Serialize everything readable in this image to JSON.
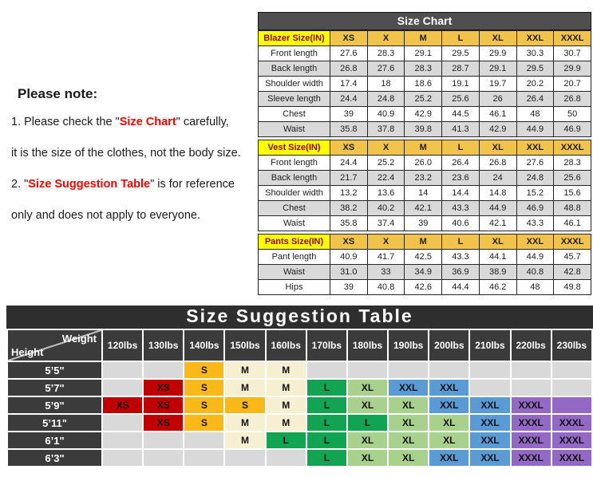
{
  "note": {
    "title": "Please note:",
    "line1_prefix": "1. Please check the \"",
    "line1_highlight": "Size Chart",
    "line1_suffix": "\" carefully,",
    "line2": "it is the size of the clothes, not the body size.",
    "line3_prefix": "2. \"",
    "line3_highlight": "Size Suggestion Table",
    "line3_suffix": "\" is for reference",
    "line4": "only and does not apply to everyone."
  },
  "size_chart": {
    "title": "Size Chart",
    "sections": [
      {
        "label": "Blazer Size(IN)",
        "sizes": [
          "XS",
          "X",
          "M",
          "L",
          "XL",
          "XXL",
          "XXXL"
        ],
        "rows": [
          {
            "label": "Front length",
            "values": [
              "27.6",
              "28.3",
              "29.1",
              "29.5",
              "29.9",
              "30.3",
              "30.7"
            ]
          },
          {
            "label": "Back length",
            "values": [
              "26.8",
              "27.6",
              "28.3",
              "28.7",
              "29.1",
              "29.5",
              "29.9"
            ]
          },
          {
            "label": "Shoulder width",
            "values": [
              "17.4",
              "18",
              "18.6",
              "19.1",
              "19.7",
              "20.2",
              "20.7"
            ]
          },
          {
            "label": "Sleeve length",
            "values": [
              "24.4",
              "24.8",
              "25.2",
              "25.6",
              "26",
              "26.4",
              "26.8"
            ]
          },
          {
            "label": "Chest",
            "values": [
              "39",
              "40.9",
              "42.9",
              "44.5",
              "46.1",
              "48",
              "50"
            ]
          },
          {
            "label": "Waist",
            "values": [
              "35.8",
              "37.8",
              "39.8",
              "41.3",
              "42.9",
              "44.9",
              "46.9"
            ]
          }
        ]
      },
      {
        "label": "Vest Size(IN)",
        "sizes": [
          "XS",
          "X",
          "M",
          "L",
          "XL",
          "XXL",
          "XXXL"
        ],
        "rows": [
          {
            "label": "Front length",
            "values": [
              "24.4",
              "25.2",
              "26.0",
              "26.4",
              "26.8",
              "27.6",
              "28.3"
            ]
          },
          {
            "label": "Back length",
            "values": [
              "21.7",
              "22.4",
              "23.2",
              "23.6",
              "24",
              "24.8",
              "25.6"
            ]
          },
          {
            "label": "Shoulder width",
            "values": [
              "13.2",
              "13.6",
              "14",
              "14.4",
              "14.8",
              "15.2",
              "15.6"
            ]
          },
          {
            "label": "Chest",
            "values": [
              "38.2",
              "40.2",
              "42.1",
              "43.3",
              "44.9",
              "46.9",
              "48.8"
            ]
          },
          {
            "label": "Waist",
            "values": [
              "35.8",
              "37.4",
              "39",
              "40.6",
              "42.1",
              "43.3",
              "46.1"
            ]
          }
        ]
      },
      {
        "label": "Pants Size(IN)",
        "sizes": [
          "XS",
          "X",
          "M",
          "L",
          "XL",
          "XXL",
          "XXXL"
        ],
        "rows": [
          {
            "label": "Pant length",
            "values": [
              "40.9",
              "41.7",
              "42.5",
              "43.3",
              "44.1",
              "44.9",
              "45.7"
            ]
          },
          {
            "label": "Waist",
            "values": [
              "31.0",
              "33",
              "34.9",
              "36.9",
              "38.9",
              "40.8",
              "42.8"
            ]
          },
          {
            "label": "Hips",
            "values": [
              "39",
              "40.8",
              "42.6",
              "44.4",
              "46.2",
              "48",
              "49.8"
            ]
          }
        ]
      }
    ]
  },
  "suggestion_table": {
    "title": "Size Suggestion Table",
    "corner": {
      "weight_label": "Weight",
      "height_label": "Height"
    },
    "weights": [
      "120lbs",
      "130lbs",
      "140lbs",
      "150lbs",
      "160lbs",
      "170lbs",
      "180lbs",
      "190lbs",
      "200lbs",
      "210lbs",
      "220lbs",
      "230lbs"
    ],
    "rows": [
      {
        "height": "5’5\"",
        "cells": [
          {
            "label": "",
            "color": "empty"
          },
          {
            "label": "",
            "color": "empty"
          },
          {
            "label": "S",
            "color": "S"
          },
          {
            "label": "M",
            "color": "M"
          },
          {
            "label": "M",
            "color": "M"
          },
          {
            "label": "",
            "color": "empty"
          },
          {
            "label": "",
            "color": "empty"
          },
          {
            "label": "",
            "color": "empty"
          },
          {
            "label": "",
            "color": "empty"
          },
          {
            "label": "",
            "color": "empty"
          },
          {
            "label": "",
            "color": "empty"
          },
          {
            "label": "",
            "color": "empty"
          }
        ]
      },
      {
        "height": "5’7\"",
        "cells": [
          {
            "label": "",
            "color": "empty"
          },
          {
            "label": "XS",
            "color": "XS"
          },
          {
            "label": "S",
            "color": "S"
          },
          {
            "label": "M",
            "color": "M"
          },
          {
            "label": "M",
            "color": "M"
          },
          {
            "label": "L",
            "color": "L"
          },
          {
            "label": "XL",
            "color": "XL"
          },
          {
            "label": "XXL",
            "color": "XXL"
          },
          {
            "label": "XXL",
            "color": "XXL"
          },
          {
            "label": "",
            "color": "empty"
          },
          {
            "label": "",
            "color": "empty"
          },
          {
            "label": "",
            "color": "empty"
          }
        ]
      },
      {
        "height": "5’9\"",
        "cells": [
          {
            "label": "XS",
            "color": "XS"
          },
          {
            "label": "XS",
            "color": "XS"
          },
          {
            "label": "S",
            "color": "S"
          },
          {
            "label": "S",
            "color": "S"
          },
          {
            "label": "M",
            "color": "M"
          },
          {
            "label": "L",
            "color": "L"
          },
          {
            "label": "XL",
            "color": "XL"
          },
          {
            "label": "XL",
            "color": "XL"
          },
          {
            "label": "XXL",
            "color": "XXL"
          },
          {
            "label": "XXL",
            "color": "XXL"
          },
          {
            "label": "XXXL",
            "color": "XXXL"
          },
          {
            "label": "",
            "color": "XXXL"
          }
        ]
      },
      {
        "height": "5’11\"",
        "cells": [
          {
            "label": "",
            "color": "empty"
          },
          {
            "label": "XS",
            "color": "XS"
          },
          {
            "label": "S",
            "color": "S"
          },
          {
            "label": "M",
            "color": "M"
          },
          {
            "label": "M",
            "color": "M"
          },
          {
            "label": "L",
            "color": "L"
          },
          {
            "label": "L",
            "color": "L"
          },
          {
            "label": "XL",
            "color": "XL"
          },
          {
            "label": "XL",
            "color": "XL"
          },
          {
            "label": "XXL",
            "color": "XXL"
          },
          {
            "label": "XXXL",
            "color": "XXXL"
          },
          {
            "label": "XXXL",
            "color": "XXXL"
          }
        ]
      },
      {
        "height": "6’1\"",
        "cells": [
          {
            "label": "",
            "color": "empty"
          },
          {
            "label": "",
            "color": "empty"
          },
          {
            "label": "",
            "color": "empty"
          },
          {
            "label": "M",
            "color": "M"
          },
          {
            "label": "L",
            "color": "L"
          },
          {
            "label": "L",
            "color": "L"
          },
          {
            "label": "XL",
            "color": "XL"
          },
          {
            "label": "XL",
            "color": "XL"
          },
          {
            "label": "XL",
            "color": "XL"
          },
          {
            "label": "XXL",
            "color": "XXL"
          },
          {
            "label": "XXXL",
            "color": "XXXL"
          },
          {
            "label": "XXXL",
            "color": "XXXL"
          }
        ]
      },
      {
        "height": "6’3\"",
        "cells": [
          {
            "label": "",
            "color": "empty"
          },
          {
            "label": "",
            "color": "empty"
          },
          {
            "label": "",
            "color": "empty"
          },
          {
            "label": "",
            "color": "empty"
          },
          {
            "label": "",
            "color": "empty"
          },
          {
            "label": "L",
            "color": "L"
          },
          {
            "label": "XL",
            "color": "XL"
          },
          {
            "label": "XL",
            "color": "XL"
          },
          {
            "label": "XXL",
            "color": "XXL"
          },
          {
            "label": "XXL",
            "color": "XXL"
          },
          {
            "label": "XXXL",
            "color": "XXXL"
          },
          {
            "label": "XXXL",
            "color": "XXXL"
          }
        ]
      }
    ]
  },
  "colors": {
    "size_colors": {
      "XS": "#c00000",
      "S": "#fbb919",
      "M": "#f6efd2",
      "L": "#12a452",
      "XL": "#a9d18e",
      "XXL": "#5b9bd5",
      "XXXL": "#9369c5",
      "empty": "#d9d9d9"
    },
    "chart_title_bg": "#4f4f4f",
    "section_label_bg": "#ffff00",
    "section_label_text": "#9c0006",
    "size_header_bg": "#f2c34a",
    "alt_row_bg": "#d9d9d9",
    "dark_header_bg": "#3b3b3b",
    "suggestion_title_bg": "#2e2e2e",
    "note_highlight": "#ff0000"
  }
}
